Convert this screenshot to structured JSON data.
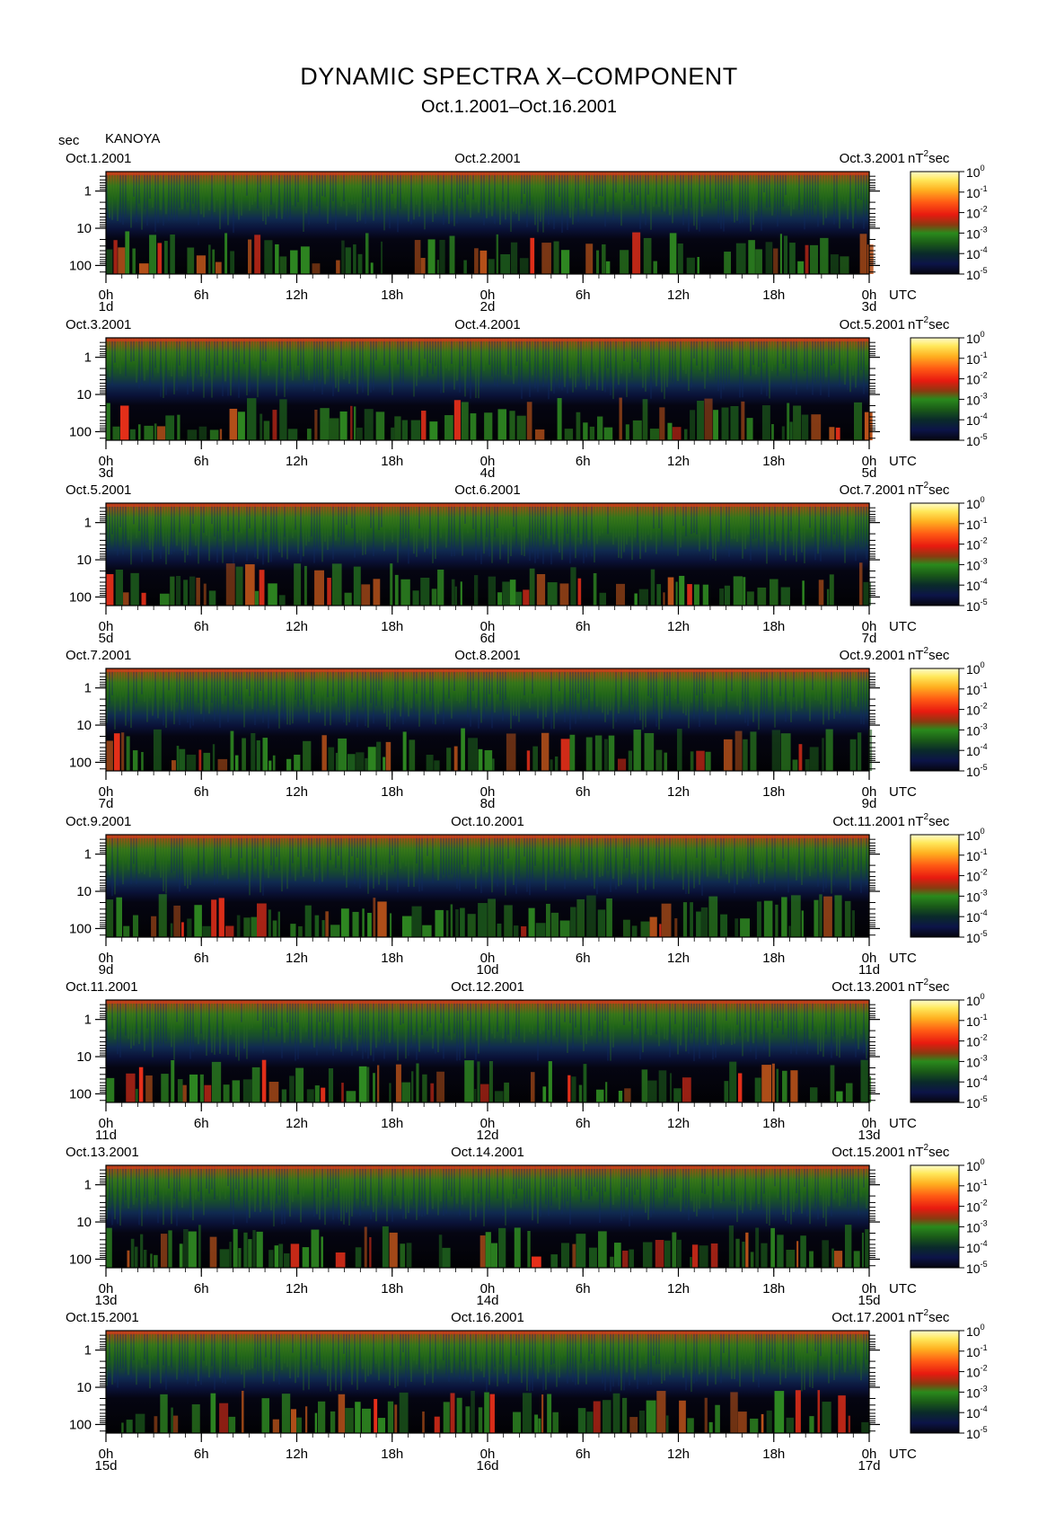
{
  "title": "DYNAMIC SPECTRA X–COMPONENT",
  "subtitle": "Oct.1.2001–Oct.16.2001",
  "y_unit": "sec",
  "station": "KANOYA",
  "colorbar_unit": "nT²sec",
  "colorbar_unit_base": "nT",
  "colorbar_unit_exp": "2",
  "colorbar_unit_tail": "sec",
  "time_unit": "UTC",
  "chart_data": [
    {
      "type": "heatmap",
      "date_start": "Oct.1.2001",
      "date_mid": "Oct.2.2001",
      "date_end": "Oct.3.2001",
      "day_labels": [
        "1d",
        "2d",
        "3d"
      ],
      "x_ticks": [
        "0h",
        "6h",
        "12h",
        "18h",
        "0h",
        "6h",
        "12h",
        "18h",
        "0h"
      ],
      "y_ticks": [
        "1",
        "10",
        "100"
      ],
      "colorbar_ticks": [
        "10",
        "10",
        "10",
        "10",
        "10",
        "10"
      ],
      "colorbar_exponents": [
        "0",
        "-1",
        "-2",
        "-3",
        "-4",
        "-5"
      ]
    },
    {
      "type": "heatmap",
      "date_start": "Oct.3.2001",
      "date_mid": "Oct.4.2001",
      "date_end": "Oct.5.2001",
      "day_labels": [
        "3d",
        "4d",
        "5d"
      ],
      "x_ticks": [
        "0h",
        "6h",
        "12h",
        "18h",
        "0h",
        "6h",
        "12h",
        "18h",
        "0h"
      ],
      "y_ticks": [
        "1",
        "10",
        "100"
      ],
      "colorbar_ticks": [
        "10",
        "10",
        "10",
        "10",
        "10",
        "10"
      ],
      "colorbar_exponents": [
        "0",
        "-1",
        "-2",
        "-3",
        "-4",
        "-5"
      ]
    },
    {
      "type": "heatmap",
      "date_start": "Oct.5.2001",
      "date_mid": "Oct.6.2001",
      "date_end": "Oct.7.2001",
      "day_labels": [
        "5d",
        "6d",
        "7d"
      ],
      "x_ticks": [
        "0h",
        "6h",
        "12h",
        "18h",
        "0h",
        "6h",
        "12h",
        "18h",
        "0h"
      ],
      "y_ticks": [
        "1",
        "10",
        "100"
      ],
      "colorbar_ticks": [
        "10",
        "10",
        "10",
        "10",
        "10",
        "10"
      ],
      "colorbar_exponents": [
        "0",
        "-1",
        "-2",
        "-3",
        "-4",
        "-5"
      ]
    },
    {
      "type": "heatmap",
      "date_start": "Oct.7.2001",
      "date_mid": "Oct.8.2001",
      "date_end": "Oct.9.2001",
      "day_labels": [
        "7d",
        "8d",
        "9d"
      ],
      "x_ticks": [
        "0h",
        "6h",
        "12h",
        "18h",
        "0h",
        "6h",
        "12h",
        "18h",
        "0h"
      ],
      "y_ticks": [
        "1",
        "10",
        "100"
      ],
      "colorbar_ticks": [
        "10",
        "10",
        "10",
        "10",
        "10",
        "10"
      ],
      "colorbar_exponents": [
        "0",
        "-1",
        "-2",
        "-3",
        "-4",
        "-5"
      ]
    },
    {
      "type": "heatmap",
      "date_start": "Oct.9.2001",
      "date_mid": "Oct.10.2001",
      "date_end": "Oct.11.2001",
      "day_labels": [
        "9d",
        "10d",
        "11d"
      ],
      "x_ticks": [
        "0h",
        "6h",
        "12h",
        "18h",
        "0h",
        "6h",
        "12h",
        "18h",
        "0h"
      ],
      "y_ticks": [
        "1",
        "10",
        "100"
      ],
      "colorbar_ticks": [
        "10",
        "10",
        "10",
        "10",
        "10",
        "10"
      ],
      "colorbar_exponents": [
        "0",
        "-1",
        "-2",
        "-3",
        "-4",
        "-5"
      ]
    },
    {
      "type": "heatmap",
      "date_start": "Oct.11.2001",
      "date_mid": "Oct.12.2001",
      "date_end": "Oct.13.2001",
      "day_labels": [
        "11d",
        "12d",
        "13d"
      ],
      "x_ticks": [
        "0h",
        "6h",
        "12h",
        "18h",
        "0h",
        "6h",
        "12h",
        "18h",
        "0h"
      ],
      "y_ticks": [
        "1",
        "10",
        "100"
      ],
      "colorbar_ticks": [
        "10",
        "10",
        "10",
        "10",
        "10",
        "10"
      ],
      "colorbar_exponents": [
        "0",
        "-1",
        "-2",
        "-3",
        "-4",
        "-5"
      ]
    },
    {
      "type": "heatmap",
      "date_start": "Oct.13.2001",
      "date_mid": "Oct.14.2001",
      "date_end": "Oct.15.2001",
      "day_labels": [
        "13d",
        "14d",
        "15d"
      ],
      "x_ticks": [
        "0h",
        "6h",
        "12h",
        "18h",
        "0h",
        "6h",
        "12h",
        "18h",
        "0h"
      ],
      "y_ticks": [
        "1",
        "10",
        "100"
      ],
      "colorbar_ticks": [
        "10",
        "10",
        "10",
        "10",
        "10",
        "10"
      ],
      "colorbar_exponents": [
        "0",
        "-1",
        "-2",
        "-3",
        "-4",
        "-5"
      ]
    },
    {
      "type": "heatmap",
      "date_start": "Oct.15.2001",
      "date_mid": "Oct.16.2001",
      "date_end": "Oct.17.2001",
      "day_labels": [
        "15d",
        "16d",
        "17d"
      ],
      "x_ticks": [
        "0h",
        "6h",
        "12h",
        "18h",
        "0h",
        "6h",
        "12h",
        "18h",
        "0h"
      ],
      "y_ticks": [
        "1",
        "10",
        "100"
      ],
      "colorbar_ticks": [
        "10",
        "10",
        "10",
        "10",
        "10",
        "10"
      ],
      "colorbar_exponents": [
        "0",
        "-1",
        "-2",
        "-3",
        "-4",
        "-5"
      ]
    }
  ]
}
